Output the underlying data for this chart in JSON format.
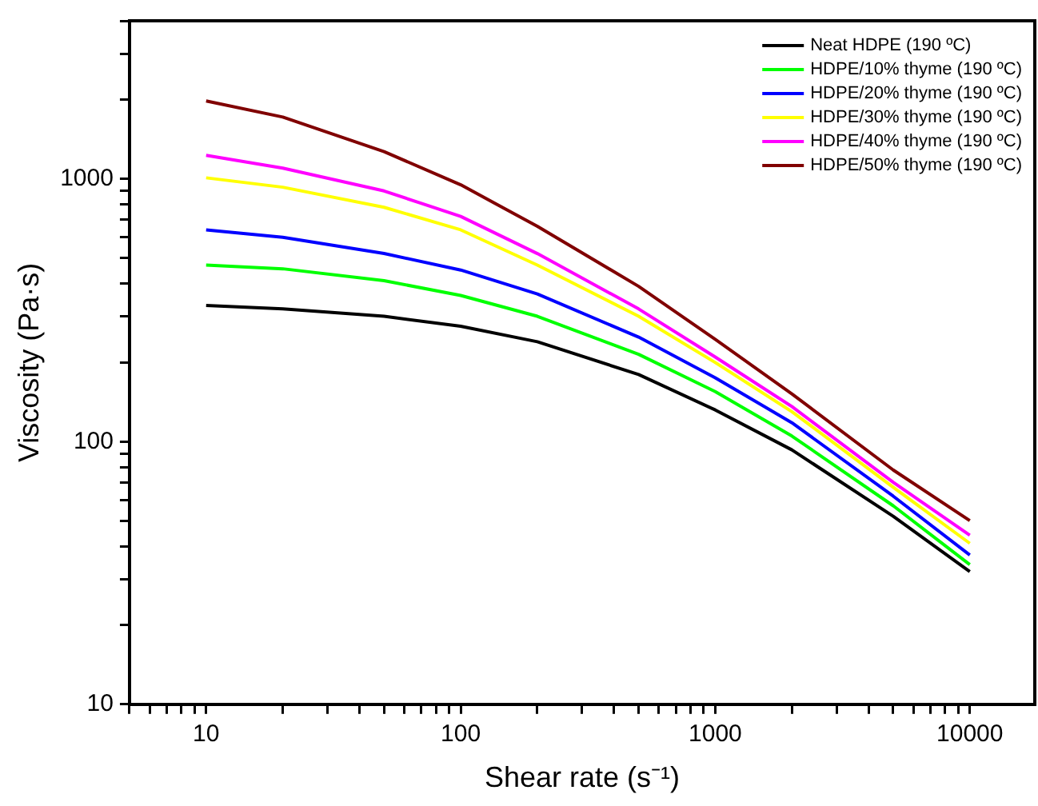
{
  "chart_data": {
    "type": "line",
    "xlabel": "Shear rate (s⁻¹)",
    "ylabel": "Viscosity (Pa·s)",
    "log": "xy",
    "grid": false,
    "legend": "top right",
    "marker": "none",
    "line_style": "solid",
    "x": [
      10,
      20,
      50,
      100,
      200,
      500,
      1000,
      2000,
      5000,
      10000
    ],
    "xlim": [
      5,
      18000
    ],
    "ylim": [
      10,
      4000
    ],
    "xticks": [
      {
        "value": 5,
        "label": null
      },
      {
        "value": 6,
        "label": null
      },
      {
        "value": 7,
        "label": null
      },
      {
        "value": 8,
        "label": null
      },
      {
        "value": 9,
        "label": null
      },
      10,
      {
        "value": 20,
        "label": null
      },
      {
        "value": 30,
        "label": null
      },
      {
        "value": 40,
        "label": null
      },
      {
        "value": 50,
        "label": null
      },
      {
        "value": 60,
        "label": null
      },
      {
        "value": 70,
        "label": null
      },
      {
        "value": 80,
        "label": null
      },
      {
        "value": 90,
        "label": null
      },
      100,
      {
        "value": 200,
        "label": null
      },
      {
        "value": 300,
        "label": null
      },
      {
        "value": 400,
        "label": null
      },
      {
        "value": 500,
        "label": null
      },
      {
        "value": 600,
        "label": null
      },
      {
        "value": 700,
        "label": null
      },
      {
        "value": 800,
        "label": null
      },
      {
        "value": 900,
        "label": null
      },
      1000,
      {
        "value": 2000,
        "label": null
      },
      {
        "value": 3000,
        "label": null
      },
      {
        "value": 4000,
        "label": null
      },
      {
        "value": 5000,
        "label": null
      },
      {
        "value": 6000,
        "label": null
      },
      {
        "value": 7000,
        "label": null
      },
      {
        "value": 8000,
        "label": null
      },
      {
        "value": 9000,
        "label": null
      },
      10000
    ],
    "yticks": [
      10,
      {
        "value": 20,
        "label": null
      },
      {
        "value": 30,
        "label": null
      },
      {
        "value": 40,
        "label": null
      },
      {
        "value": 50,
        "label": null
      },
      {
        "value": 60,
        "label": null
      },
      {
        "value": 70,
        "label": null
      },
      {
        "value": 80,
        "label": null
      },
      {
        "value": 90,
        "label": null
      },
      100,
      {
        "value": 200,
        "label": null
      },
      {
        "value": 300,
        "label": null
      },
      {
        "value": 400,
        "label": null
      },
      {
        "value": 500,
        "label": null
      },
      {
        "value": 600,
        "label": null
      },
      {
        "value": 700,
        "label": null
      },
      {
        "value": 800,
        "label": null
      },
      {
        "value": 900,
        "label": null
      },
      1000,
      {
        "value": 2000,
        "label": null
      },
      {
        "value": 3000,
        "label": null
      },
      {
        "value": 4000,
        "label": null
      }
    ],
    "series": [
      {
        "name": "Neat HDPE (190 ºC)",
        "color": "#000000",
        "values": [
          330,
          320,
          300,
          275,
          240,
          180,
          132,
          93,
          52,
          32
        ]
      },
      {
        "name": "HDPE/10% thyme (190 ºC)",
        "color": "#00ff00",
        "values": [
          470,
          455,
          410,
          360,
          300,
          215,
          155,
          105,
          57,
          34
        ]
      },
      {
        "name": "HDPE/20% thyme (190 ºC)",
        "color": "#0000ff",
        "values": [
          640,
          600,
          520,
          450,
          365,
          250,
          175,
          118,
          62,
          37
        ]
      },
      {
        "name": "HDPE/30% thyme (190 ºC)",
        "color": "#ffff00",
        "values": [
          1010,
          930,
          780,
          640,
          470,
          300,
          200,
          130,
          67,
          41
        ]
      },
      {
        "name": "HDPE/40% thyme (190 ºC)",
        "color": "#ff00ff",
        "values": [
          1230,
          1100,
          900,
          720,
          520,
          320,
          210,
          136,
          70,
          44
        ]
      },
      {
        "name": "HDPE/50% thyme (190 ºC)",
        "color": "#800000",
        "values": [
          1980,
          1720,
          1270,
          950,
          660,
          390,
          245,
          152,
          78,
          50
        ]
      }
    ]
  }
}
